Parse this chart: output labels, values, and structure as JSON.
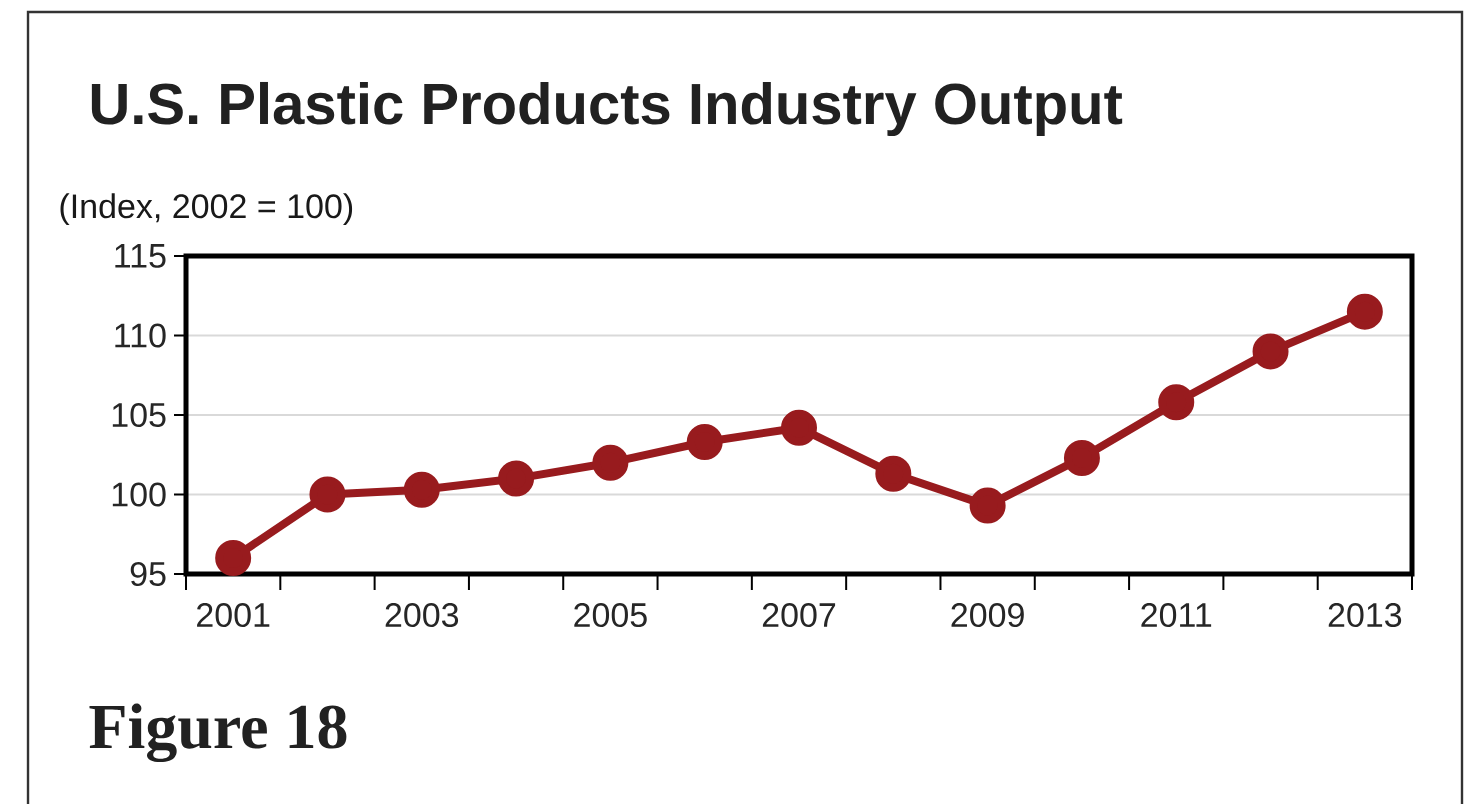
{
  "chart_data": {
    "type": "line",
    "title": "U.S. Plastic Products Industry Output",
    "ylabel": "(Index, 2002 = 100)",
    "categories": [
      "2001",
      null,
      "2003",
      null,
      "2005",
      null,
      "2007",
      null,
      "2009",
      null,
      "2011",
      null,
      "2013"
    ],
    "series": [
      {
        "color": "#981b1e",
        "values": [
          96.0,
          100.0,
          100.3,
          101.0,
          102.0,
          103.3,
          104.2,
          101.3,
          99.3,
          102.3,
          105.8,
          109.0,
          111.5
        ]
      }
    ],
    "ylim": [
      95,
      115
    ],
    "yticks": [
      95,
      100,
      105,
      110,
      115
    ],
    "grid": "y",
    "marker": "circle",
    "line_style": "solid",
    "annotations": [
      "Figure 18"
    ]
  }
}
